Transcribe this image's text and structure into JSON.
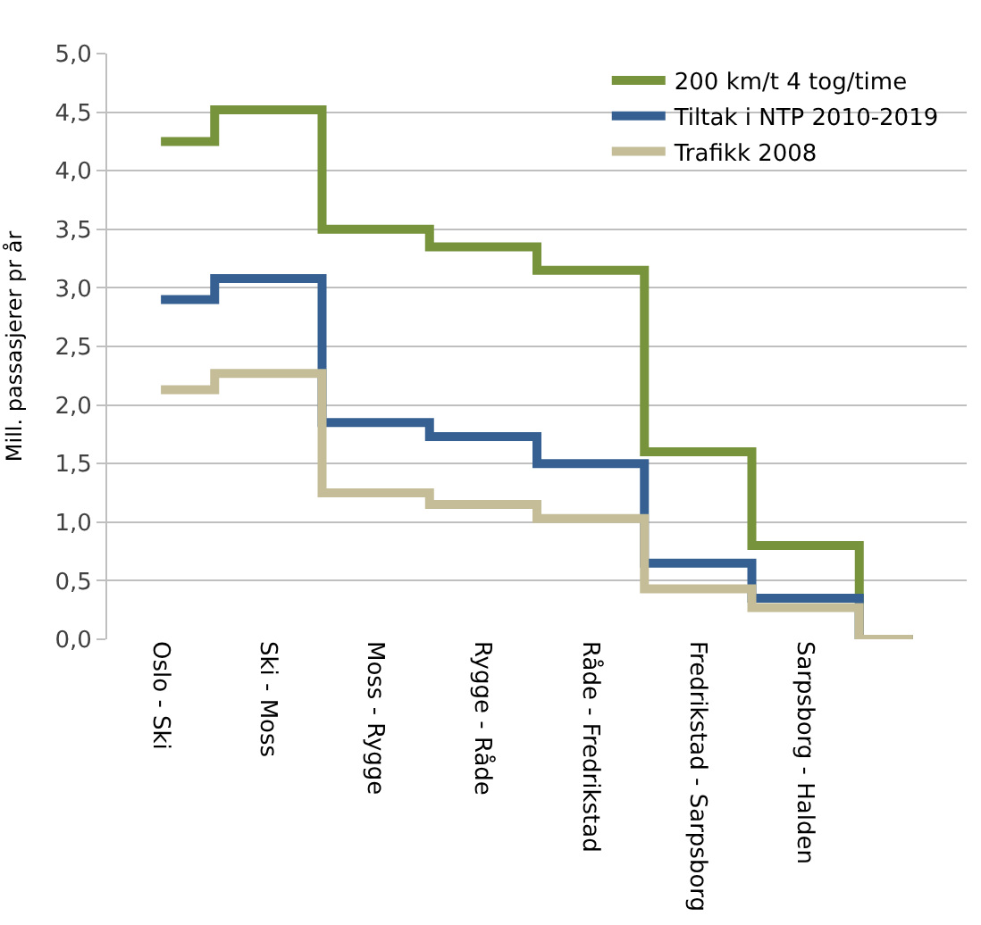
{
  "chart_data": {
    "type": "step",
    "ylabel": "Mill. passasjerer pr år",
    "categories": [
      "Oslo - Ski",
      "Ski - Moss",
      "Moss - Rygge",
      "Rygge - Råde",
      "Råde - Fredrikstad",
      "Fredrikstad - Sarpsborg",
      "Sarpsborg - Halden",
      null
    ],
    "series": [
      {
        "name": "200 km/t 4 tog/time",
        "color": "#77933c",
        "values": [
          4.25,
          4.52,
          3.5,
          3.35,
          3.15,
          1.6,
          0.8,
          0
        ]
      },
      {
        "name": "Tiltak i NTP 2010-2019",
        "color": "#376092",
        "values": [
          2.9,
          3.08,
          1.85,
          1.73,
          1.5,
          0.65,
          0.35,
          0
        ]
      },
      {
        "name": "Trafikk 2008",
        "color": "#c4bd97",
        "values": [
          2.13,
          2.27,
          1.25,
          1.15,
          1.03,
          0.43,
          0.27,
          0
        ]
      }
    ],
    "ylim": [
      0,
      5
    ],
    "yticks": [
      {
        "value": 0,
        "label": "0,0"
      },
      {
        "value": 0.5,
        "label": "0,5"
      },
      {
        "value": 1,
        "label": "1,0"
      },
      {
        "value": 1.5,
        "label": "1,5"
      },
      {
        "value": 2,
        "label": "2,0"
      },
      {
        "value": 2.5,
        "label": "2,5"
      },
      {
        "value": 3,
        "label": "3,0"
      },
      {
        "value": 3.5,
        "label": "3,5"
      },
      {
        "value": 4,
        "label": "4,0"
      },
      {
        "value": 4.5,
        "label": "4,5"
      },
      {
        "value": 5,
        "label": "5,0"
      }
    ],
    "grid": "y",
    "legend": "top right"
  }
}
